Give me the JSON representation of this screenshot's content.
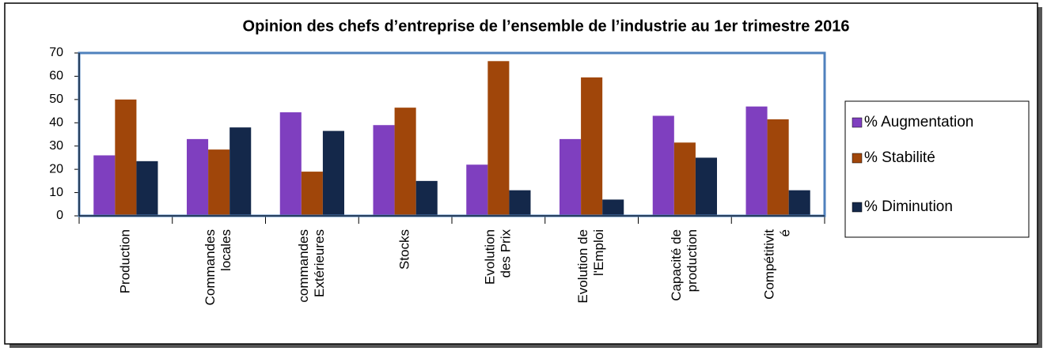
{
  "chart_data": {
    "type": "bar",
    "title": "Opinion des chefs d’entreprise de l’ensemble de l’industrie au 1er  trimestre 2016",
    "categories": [
      [
        "Production"
      ],
      [
        "Commandes",
        "locales"
      ],
      [
        "commandes",
        "Extérieures"
      ],
      [
        "Stocks"
      ],
      [
        "Evolution",
        "des Prix"
      ],
      [
        "Evolution de",
        "l'Emploi"
      ],
      [
        "Capacité de",
        "production"
      ],
      [
        "Compétitivit",
        "é"
      ]
    ],
    "series": [
      {
        "name": "% Augmentation",
        "color": "#7f3fbf",
        "values": [
          26,
          33,
          44.5,
          39,
          22,
          33,
          43,
          47
        ]
      },
      {
        "name": "% Stabilité",
        "color": "#a0460a",
        "values": [
          50,
          28.5,
          19,
          46.5,
          66.5,
          59.5,
          31.5,
          41.5
        ]
      },
      {
        "name": "% Diminution",
        "color": "#14284a",
        "values": [
          23.5,
          38,
          36.5,
          15,
          11,
          7,
          25,
          11
        ]
      }
    ],
    "ylim": [
      0,
      70
    ],
    "yticks": [
      0,
      10,
      20,
      30,
      40,
      50,
      60,
      70
    ],
    "legend": "right"
  }
}
